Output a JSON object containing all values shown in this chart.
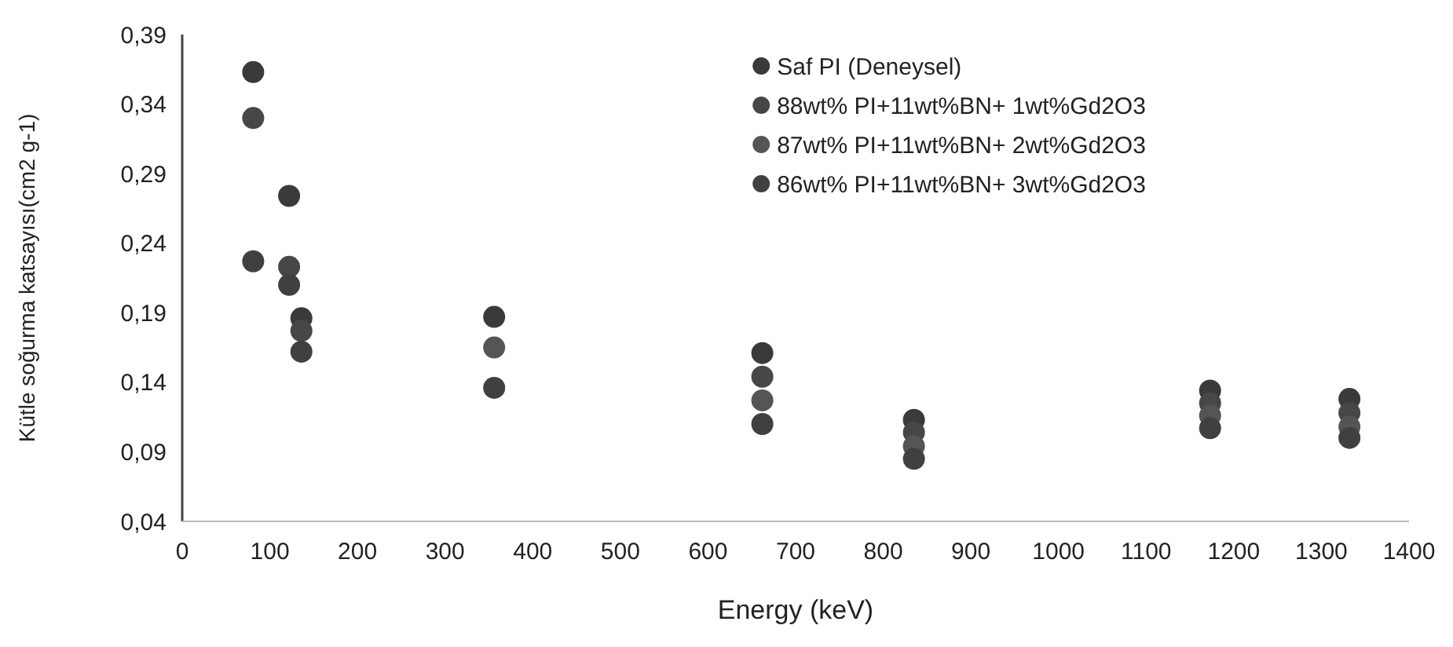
{
  "chart_data": {
    "type": "scatter",
    "xlabel": "Energy (keV)",
    "ylabel": "Kütle soğurma katsayısı(cm2 g-1)",
    "x": [
      81,
      122,
      136,
      356,
      662,
      835,
      1173,
      1332
    ],
    "series": [
      {
        "name": "Saf PI (Deneysel)",
        "color": "#3a3a3a",
        "values": [
          0.363,
          0.274,
          0.186,
          0.187,
          0.161,
          0.113,
          0.134,
          0.128
        ]
      },
      {
        "name": "88wt% PI+11wt%BN+ 1wt%Gd2O3",
        "color": "#474747",
        "values": [
          0.33,
          0.223,
          0.177,
          null,
          0.144,
          0.104,
          0.125,
          0.118
        ]
      },
      {
        "name": "87wt% PI+11wt%BN+ 2wt%Gd2O3",
        "color": "#555555",
        "values": [
          null,
          null,
          null,
          0.165,
          0.127,
          0.094,
          0.116,
          0.108
        ]
      },
      {
        "name": "86wt% PI+11wt%BN+ 3wt%Gd2O3",
        "color": "#404040",
        "values": [
          0.227,
          0.21,
          0.162,
          0.136,
          0.11,
          0.085,
          0.107,
          0.1
        ]
      }
    ],
    "xlim": [
      0,
      1400
    ],
    "xticks": [
      0,
      100,
      200,
      300,
      400,
      500,
      600,
      700,
      800,
      900,
      1000,
      1100,
      1200,
      1300,
      1400
    ],
    "ylim": [
      0.04,
      0.39
    ],
    "yticks": [
      {
        "value": 0.04,
        "label": "0,04"
      },
      {
        "value": 0.09,
        "label": "0,09"
      },
      {
        "value": 0.14,
        "label": "0,14"
      },
      {
        "value": 0.19,
        "label": "0,19"
      },
      {
        "value": 0.24,
        "label": "0,24"
      },
      {
        "value": 0.29,
        "label": "0,29"
      },
      {
        "value": 0.34,
        "label": "0,34"
      },
      {
        "value": 0.39,
        "label": "0,39"
      }
    ],
    "grid": false,
    "legend": "top right",
    "marker": "circle"
  }
}
